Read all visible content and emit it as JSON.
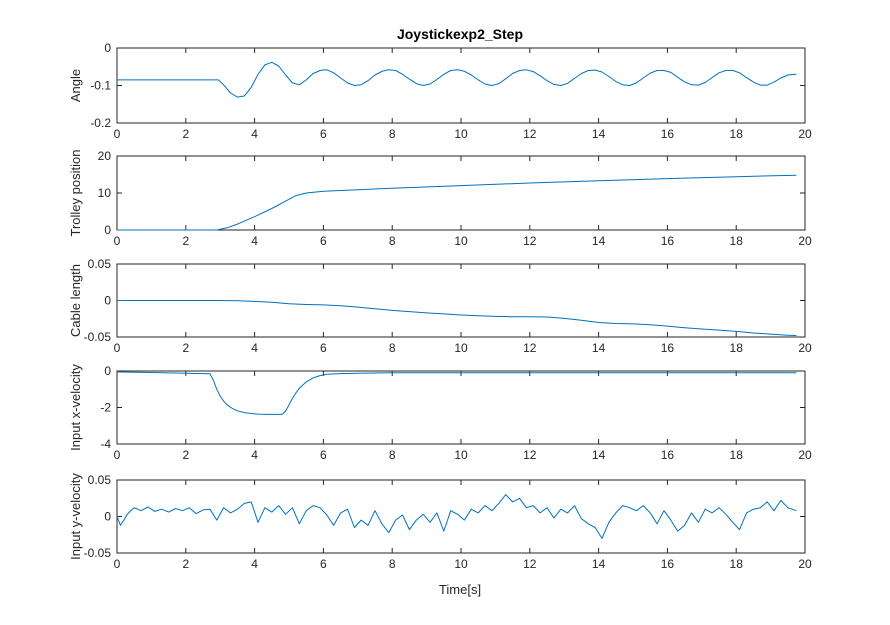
{
  "figure": {
    "title": "Joystickexp2_Step",
    "xlabel": "Time[s]",
    "line_color": "#0072BD"
  },
  "chart_data": [
    {
      "type": "line",
      "title": "Joystickexp2_Step",
      "xlabel": "",
      "ylabel": "Angle",
      "xlim": [
        0,
        20
      ],
      "ylim": [
        -0.2,
        0
      ],
      "xticks": [
        0,
        2,
        4,
        6,
        8,
        10,
        12,
        14,
        16,
        18,
        20
      ],
      "yticks": [
        -0.2,
        -0.1,
        0
      ],
      "ytick_labels": [
        "-0.2",
        "-0.1",
        "0"
      ],
      "grid": false,
      "series": [
        {
          "x": [
            0,
            1,
            2,
            2.95,
            3.1,
            3.3,
            3.5,
            3.7,
            3.9,
            4.1,
            4.3,
            4.5,
            4.7,
            4.9,
            5.1,
            5.3,
            5.5,
            5.7,
            5.9,
            6.1,
            6.3,
            6.5,
            6.7,
            6.9,
            7.1,
            7.3,
            7.5,
            7.7,
            7.9,
            8.1,
            8.3,
            8.5,
            8.7,
            8.9,
            9.1,
            9.3,
            9.5,
            9.7,
            9.9,
            10.1,
            10.3,
            10.5,
            10.7,
            10.9,
            11.1,
            11.3,
            11.5,
            11.7,
            11.9,
            12.1,
            12.3,
            12.5,
            12.7,
            12.9,
            13.1,
            13.3,
            13.5,
            13.7,
            13.9,
            14.1,
            14.3,
            14.5,
            14.7,
            14.9,
            15.1,
            15.3,
            15.5,
            15.7,
            15.9,
            16.1,
            16.3,
            16.5,
            16.7,
            16.9,
            17.1,
            17.3,
            17.5,
            17.7,
            17.9,
            18.1,
            18.3,
            18.5,
            18.7,
            18.9,
            19.1,
            19.3,
            19.5,
            19.75
          ],
          "y": [
            -0.085,
            -0.085,
            -0.085,
            -0.085,
            -0.098,
            -0.12,
            -0.131,
            -0.128,
            -0.105,
            -0.07,
            -0.045,
            -0.038,
            -0.048,
            -0.072,
            -0.093,
            -0.098,
            -0.085,
            -0.068,
            -0.06,
            -0.058,
            -0.066,
            -0.08,
            -0.093,
            -0.1,
            -0.098,
            -0.087,
            -0.072,
            -0.062,
            -0.058,
            -0.06,
            -0.07,
            -0.083,
            -0.095,
            -0.1,
            -0.096,
            -0.084,
            -0.07,
            -0.06,
            -0.058,
            -0.062,
            -0.072,
            -0.085,
            -0.096,
            -0.1,
            -0.095,
            -0.082,
            -0.068,
            -0.06,
            -0.058,
            -0.063,
            -0.074,
            -0.087,
            -0.097,
            -0.1,
            -0.094,
            -0.081,
            -0.068,
            -0.06,
            -0.059,
            -0.064,
            -0.076,
            -0.089,
            -0.098,
            -0.1,
            -0.093,
            -0.08,
            -0.067,
            -0.06,
            -0.06,
            -0.065,
            -0.078,
            -0.09,
            -0.098,
            -0.099,
            -0.092,
            -0.079,
            -0.066,
            -0.06,
            -0.06,
            -0.066,
            -0.079,
            -0.091,
            -0.099,
            -0.099,
            -0.091,
            -0.08,
            -0.072,
            -0.07
          ]
        }
      ]
    },
    {
      "type": "line",
      "xlabel": "",
      "ylabel": "Trolley position",
      "xlim": [
        0,
        20
      ],
      "ylim": [
        0,
        20
      ],
      "xticks": [
        0,
        2,
        4,
        6,
        8,
        10,
        12,
        14,
        16,
        18,
        20
      ],
      "yticks": [
        0,
        10,
        20
      ],
      "ytick_labels": [
        "0",
        "10",
        "20"
      ],
      "grid": false,
      "series": [
        {
          "x": [
            0,
            2.9,
            3.2,
            3.5,
            4,
            4.5,
            5,
            5.2,
            5.5,
            6,
            7,
            8,
            10,
            12,
            14,
            16,
            18,
            19.75
          ],
          "y": [
            0,
            0,
            0.6,
            1.6,
            3.6,
            5.8,
            8.3,
            9.3,
            10.0,
            10.5,
            10.9,
            11.3,
            12.0,
            12.7,
            13.3,
            13.9,
            14.4,
            14.8
          ]
        }
      ]
    },
    {
      "type": "line",
      "xlabel": "",
      "ylabel": "Cable length",
      "xlim": [
        0,
        20
      ],
      "ylim": [
        -0.05,
        0.05
      ],
      "xticks": [
        0,
        2,
        4,
        6,
        8,
        10,
        12,
        14,
        16,
        18,
        20
      ],
      "yticks": [
        -0.05,
        0,
        0.05
      ],
      "ytick_labels": [
        "-0.05",
        "0",
        "0.05"
      ],
      "grid": false,
      "series": [
        {
          "x": [
            0,
            1,
            2,
            3,
            3.5,
            4,
            4.5,
            5,
            5.5,
            6,
            6.5,
            7,
            7.5,
            8,
            8.5,
            9,
            9.5,
            10,
            10.5,
            11,
            11.5,
            12,
            12.5,
            13,
            13.5,
            14,
            14.5,
            15,
            15.5,
            16,
            16.5,
            17,
            17.5,
            18,
            18.5,
            19,
            19.5,
            19.75
          ],
          "y": [
            0,
            0,
            0,
            0,
            -0.0003,
            -0.0012,
            -0.0025,
            -0.0045,
            -0.0055,
            -0.006,
            -0.0072,
            -0.009,
            -0.0112,
            -0.0135,
            -0.0152,
            -0.017,
            -0.0183,
            -0.0198,
            -0.021,
            -0.0218,
            -0.0222,
            -0.0223,
            -0.0226,
            -0.0245,
            -0.027,
            -0.0302,
            -0.0315,
            -0.032,
            -0.0332,
            -0.035,
            -0.0372,
            -0.039,
            -0.0405,
            -0.0423,
            -0.0445,
            -0.046,
            -0.0475,
            -0.048
          ]
        }
      ]
    },
    {
      "type": "line",
      "xlabel": "",
      "ylabel": "Input x-velocity",
      "xlim": [
        0,
        20
      ],
      "ylim": [
        -4,
        0
      ],
      "xticks": [
        0,
        2,
        4,
        6,
        8,
        10,
        12,
        14,
        16,
        18,
        20
      ],
      "yticks": [
        -4,
        -2,
        0
      ],
      "ytick_labels": [
        "-4",
        "-2",
        "0"
      ],
      "grid": false,
      "series": [
        {
          "x": [
            0,
            1,
            2,
            2.7,
            2.8,
            2.9,
            3,
            3.1,
            3.2,
            3.35,
            3.5,
            3.7,
            3.9,
            4.1,
            4.4,
            4.8,
            4.9,
            5,
            5.1,
            5.2,
            5.3,
            5.5,
            5.7,
            5.9,
            6.1,
            6.5,
            7,
            8,
            10,
            12,
            14,
            16,
            18,
            19.75
          ],
          "y": [
            -0.05,
            -0.08,
            -0.12,
            -0.15,
            -0.5,
            -1.0,
            -1.38,
            -1.65,
            -1.85,
            -2.05,
            -2.18,
            -2.28,
            -2.33,
            -2.36,
            -2.38,
            -2.38,
            -2.2,
            -1.85,
            -1.5,
            -1.2,
            -0.95,
            -0.6,
            -0.38,
            -0.25,
            -0.18,
            -0.14,
            -0.12,
            -0.1,
            -0.1,
            -0.1,
            -0.1,
            -0.1,
            -0.1,
            -0.1
          ]
        }
      ]
    },
    {
      "type": "line",
      "xlabel": "Time[s]",
      "ylabel": "Input y-velocity",
      "xlim": [
        0,
        20
      ],
      "ylim": [
        -0.05,
        0.05
      ],
      "xticks": [
        0,
        2,
        4,
        6,
        8,
        10,
        12,
        14,
        16,
        18,
        20
      ],
      "yticks": [
        -0.05,
        0,
        0.05
      ],
      "ytick_labels": [
        "-0.05",
        "0",
        "0.05"
      ],
      "grid": false,
      "series": [
        {
          "x": [
            0,
            0.1,
            0.2,
            0.3,
            0.4,
            0.5,
            0.7,
            0.9,
            1.1,
            1.3,
            1.5,
            1.7,
            1.9,
            2.1,
            2.3,
            2.5,
            2.7,
            2.9,
            3.1,
            3.3,
            3.5,
            3.7,
            3.9,
            4.1,
            4.3,
            4.5,
            4.7,
            4.9,
            5.1,
            5.3,
            5.5,
            5.7,
            5.9,
            6.1,
            6.3,
            6.5,
            6.7,
            6.9,
            7.1,
            7.3,
            7.5,
            7.7,
            7.9,
            8.1,
            8.3,
            8.5,
            8.7,
            8.9,
            9.1,
            9.3,
            9.5,
            9.7,
            9.9,
            10.1,
            10.3,
            10.5,
            10.7,
            10.9,
            11.1,
            11.3,
            11.5,
            11.7,
            11.9,
            12.1,
            12.3,
            12.5,
            12.7,
            12.9,
            13.1,
            13.3,
            13.5,
            13.7,
            13.9,
            14.1,
            14.3,
            14.5,
            14.7,
            14.9,
            15.1,
            15.3,
            15.5,
            15.7,
            15.9,
            16.1,
            16.3,
            16.5,
            16.7,
            16.9,
            17.1,
            17.3,
            17.5,
            17.7,
            17.9,
            18.1,
            18.3,
            18.5,
            18.7,
            18.9,
            19.1,
            19.3,
            19.5,
            19.75
          ],
          "y": [
            0,
            -0.012,
            -0.005,
            0.003,
            0.008,
            0.012,
            0.008,
            0.013,
            0.007,
            0.01,
            0.006,
            0.011,
            0.008,
            0.012,
            0.004,
            0.009,
            0.01,
            -0.005,
            0.012,
            0.005,
            0.01,
            0.018,
            0.02,
            -0.008,
            0.012,
            0.006,
            0.015,
            0.003,
            0.012,
            -0.01,
            0.008,
            0.015,
            0.012,
            0.002,
            -0.012,
            0.005,
            0.01,
            -0.015,
            -0.005,
            -0.012,
            0.008,
            -0.01,
            -0.022,
            -0.005,
            0.002,
            -0.018,
            -0.005,
            0.003,
            -0.008,
            0.005,
            -0.02,
            0.008,
            0.003,
            -0.005,
            0.01,
            0.005,
            0.015,
            0.008,
            0.018,
            0.03,
            0.02,
            0.025,
            0.012,
            0.015,
            0.005,
            0.012,
            -0.002,
            0.01,
            0.005,
            0.015,
            -0.003,
            -0.01,
            -0.015,
            -0.03,
            -0.008,
            0.005,
            0.015,
            0.012,
            0.008,
            0.015,
            0.005,
            -0.01,
            0.008,
            -0.005,
            -0.02,
            -0.012,
            0.005,
            -0.008,
            0.01,
            0.005,
            0.012,
            0.003,
            -0.008,
            -0.018,
            0.005,
            0.01,
            0.012,
            0.02,
            0.008,
            0.022,
            0.012,
            0.008
          ]
        }
      ]
    }
  ]
}
